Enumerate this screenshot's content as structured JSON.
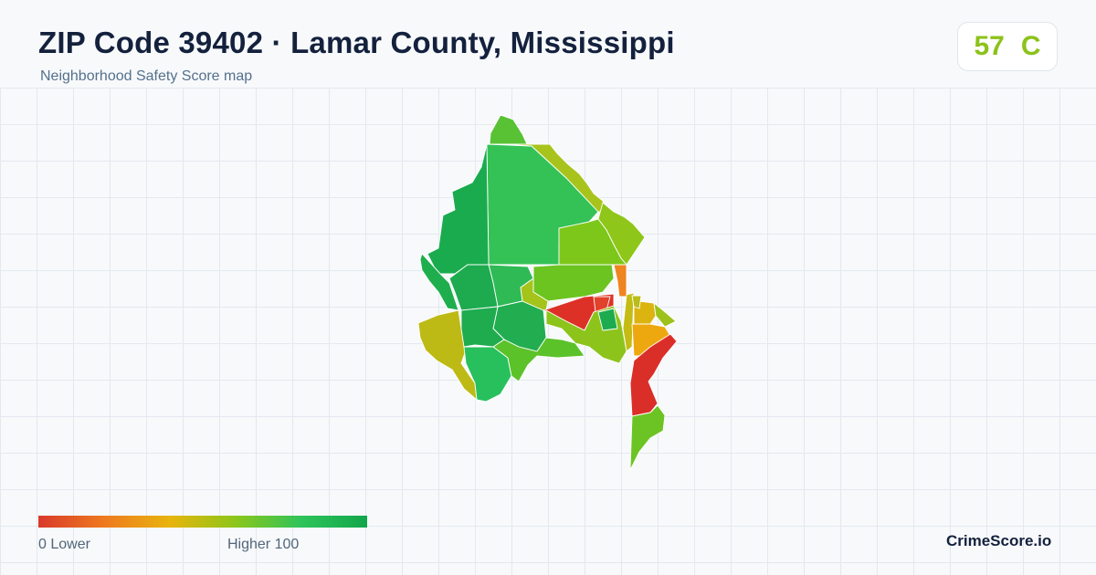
{
  "header": {
    "title": "ZIP Code 39402 · Lamar County, Mississippi",
    "subtitle": "Neighborhood Safety Score map"
  },
  "score": {
    "value": "57",
    "grade": "C",
    "color": "#8cc21a"
  },
  "legend": {
    "min_label": "0  Lower",
    "max_label": "Higher  100",
    "gradient": [
      "#d93a2b",
      "#ee7a1f",
      "#e8b40d",
      "#8cc61a",
      "#2fc45a",
      "#12a64c"
    ]
  },
  "brand": {
    "name": "CrimeScore.io"
  },
  "map": {
    "regions": [
      {
        "name": "far-north-tip",
        "color": "#58c234"
      },
      {
        "name": "north-large-west",
        "color": "#34c257"
      },
      {
        "name": "north-strip",
        "color": "#a8c41c"
      },
      {
        "name": "northeast-corner",
        "color": "#8fc61a"
      },
      {
        "name": "west-large",
        "color": "#1aab4e"
      },
      {
        "name": "west-edge",
        "color": "#1fae4e"
      },
      {
        "name": "central-east",
        "color": "#7dc71a"
      },
      {
        "name": "central-mid-north",
        "color": "#2fba55"
      },
      {
        "name": "central-mid",
        "color": "#1eaa4f"
      },
      {
        "name": "central-mid-east",
        "color": "#22ad50"
      },
      {
        "name": "mid-green-band",
        "color": "#6cc420"
      },
      {
        "name": "mid-yellow-green",
        "color": "#a4c41c"
      },
      {
        "name": "orange-sliver",
        "color": "#ef8420"
      },
      {
        "name": "red-center",
        "color": "#dd3128"
      },
      {
        "name": "red-small",
        "color": "#e2412b"
      },
      {
        "name": "lower-mid-green",
        "color": "#8cc41c"
      },
      {
        "name": "southwest-olive",
        "color": "#bdba16"
      },
      {
        "name": "south-west-center",
        "color": "#1eac4f"
      },
      {
        "name": "south-center",
        "color": "#28c05c"
      },
      {
        "name": "south-mid-green",
        "color": "#5cc22a"
      },
      {
        "name": "east-small-green",
        "color": "#1cab4f"
      },
      {
        "name": "east-small-yellow",
        "color": "#c4bc14"
      },
      {
        "name": "east-orange",
        "color": "#eea80f"
      },
      {
        "name": "east-gold-small",
        "color": "#dcb410"
      },
      {
        "name": "east-olive-small",
        "color": "#b9bd18"
      },
      {
        "name": "east-lightgreen-small",
        "color": "#9cc21b"
      },
      {
        "name": "southeast-red",
        "color": "#da2f28"
      },
      {
        "name": "south-tail-green",
        "color": "#6cc424"
      }
    ]
  }
}
